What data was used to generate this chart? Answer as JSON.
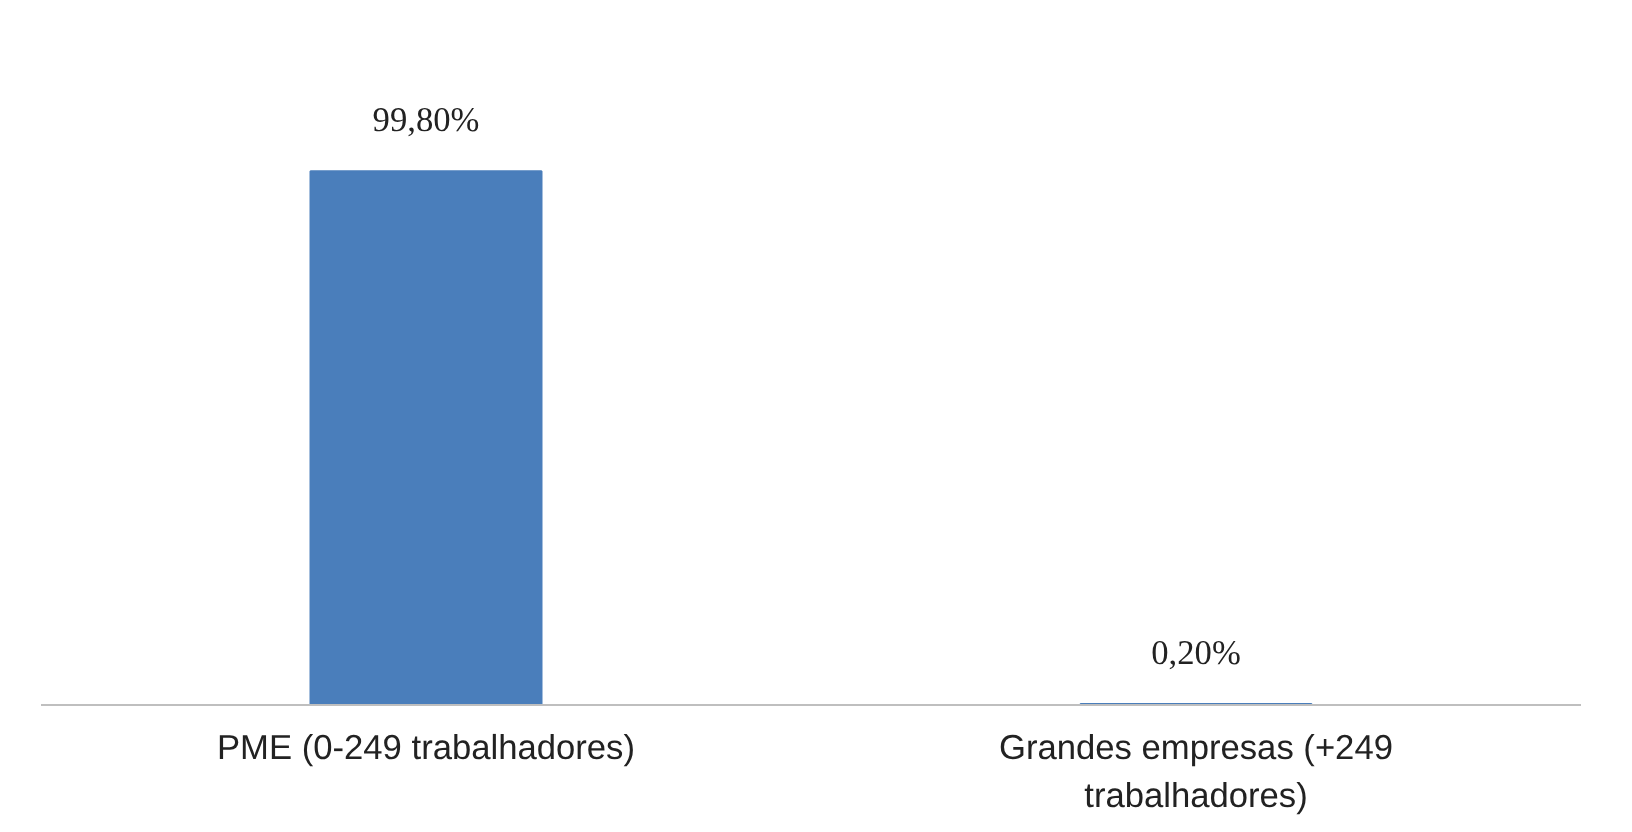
{
  "chart_data": {
    "type": "bar",
    "categories": [
      "PME (0-249 trabalhadores)",
      "Grandes empresas (+249 trabalhadores)"
    ],
    "values": [
      99.8,
      0.2
    ],
    "value_labels": [
      "99,80%",
      "0,20%"
    ],
    "color": "#4a7ebb"
  }
}
